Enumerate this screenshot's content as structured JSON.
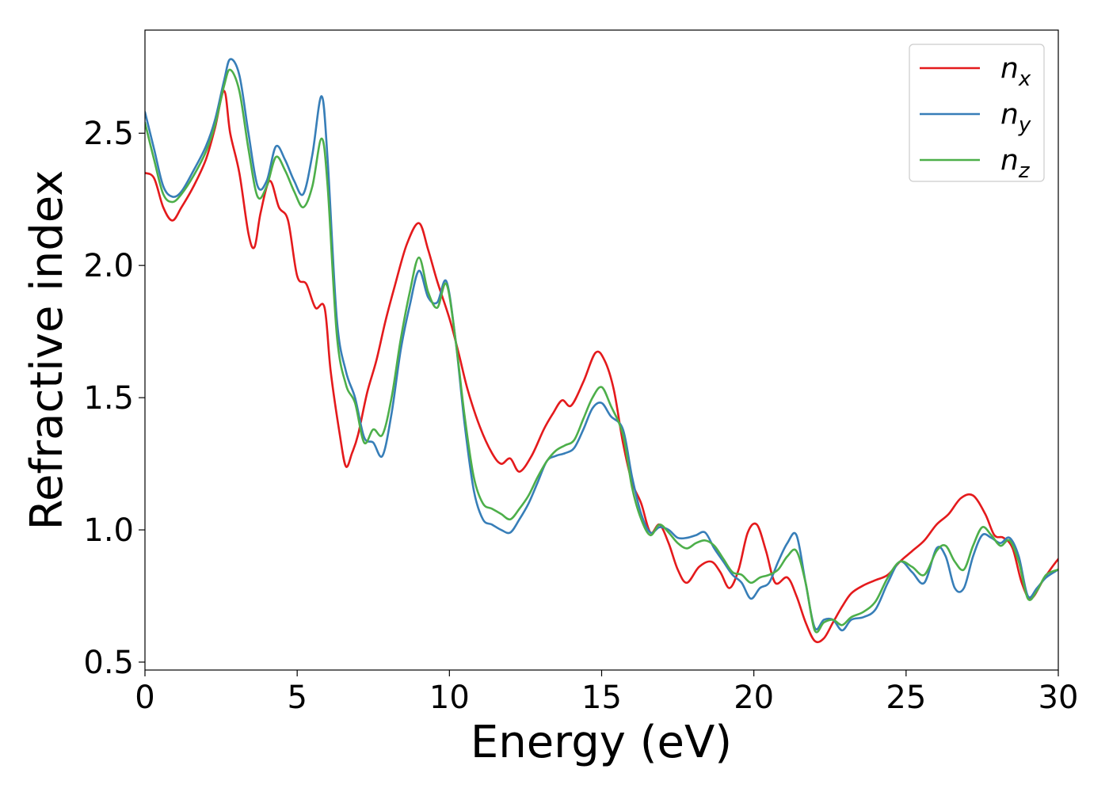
{
  "chart_data": {
    "type": "line",
    "title": "",
    "xlabel": "Energy (eV)",
    "ylabel": "Refractive index",
    "xlim": [
      0,
      30
    ],
    "ylim": [
      0.47,
      2.89
    ],
    "xticks": [
      0,
      5,
      10,
      15,
      20,
      25,
      30
    ],
    "yticks": [
      0.5,
      1.0,
      1.5,
      2.0,
      2.5
    ],
    "xtick_labels": [
      "0",
      "5",
      "10",
      "15",
      "20",
      "25",
      "30"
    ],
    "ytick_labels": [
      "0.5",
      "1.0",
      "1.5",
      "2.0",
      "2.5"
    ],
    "grid": false,
    "legend_position": "top-right",
    "series": [
      {
        "name": "x",
        "label_base": "n",
        "label_sub": "x",
        "color": "#e41a1c",
        "x": [
          0,
          0.3,
          0.6,
          0.9,
          1.2,
          1.6,
          2.0,
          2.3,
          2.6,
          2.8,
          3.1,
          3.4,
          3.6,
          3.8,
          4.1,
          4.4,
          4.7,
          5.0,
          5.3,
          5.6,
          5.9,
          6.1,
          6.4,
          6.6,
          6.8,
          7.0,
          7.3,
          7.6,
          7.9,
          8.2,
          8.6,
          9.0,
          9.3,
          9.6,
          10.0,
          10.3,
          10.6,
          11.0,
          11.4,
          11.7,
          12.0,
          12.3,
          12.7,
          13.1,
          13.4,
          13.7,
          14.0,
          14.4,
          14.8,
          15.1,
          15.4,
          15.7,
          16.0,
          16.3,
          16.6,
          16.9,
          17.2,
          17.5,
          17.8,
          18.2,
          18.6,
          18.9,
          19.2,
          19.5,
          19.8,
          20.1,
          20.4,
          20.7,
          21.1,
          21.4,
          21.7,
          22.0,
          22.3,
          22.6,
          22.9,
          23.2,
          23.6,
          24.0,
          24.4,
          24.8,
          25.2,
          25.6,
          26.0,
          26.4,
          26.8,
          27.2,
          27.6,
          27.9,
          28.2,
          28.5,
          28.8,
          29.1,
          29.5,
          29.8,
          30.0
        ],
        "y": [
          2.35,
          2.33,
          2.22,
          2.17,
          2.22,
          2.3,
          2.4,
          2.52,
          2.66,
          2.5,
          2.35,
          2.12,
          2.07,
          2.2,
          2.32,
          2.22,
          2.17,
          1.96,
          1.93,
          1.84,
          1.84,
          1.6,
          1.36,
          1.24,
          1.29,
          1.36,
          1.52,
          1.64,
          1.79,
          1.92,
          2.08,
          2.16,
          2.06,
          1.94,
          1.8,
          1.67,
          1.53,
          1.39,
          1.29,
          1.25,
          1.27,
          1.22,
          1.28,
          1.38,
          1.44,
          1.49,
          1.47,
          1.56,
          1.67,
          1.64,
          1.53,
          1.33,
          1.18,
          1.1,
          0.99,
          1.02,
          0.95,
          0.85,
          0.8,
          0.86,
          0.88,
          0.84,
          0.78,
          0.85,
          0.99,
          1.02,
          0.92,
          0.8,
          0.82,
          0.75,
          0.65,
          0.58,
          0.59,
          0.65,
          0.71,
          0.76,
          0.79,
          0.81,
          0.83,
          0.88,
          0.92,
          0.96,
          1.02,
          1.06,
          1.12,
          1.13,
          1.06,
          0.98,
          0.97,
          0.93,
          0.8,
          0.74,
          0.81,
          0.86,
          0.89
        ]
      },
      {
        "name": "y",
        "label_base": "n",
        "label_sub": "y",
        "color": "#377eb8",
        "x": [
          0,
          0.3,
          0.6,
          0.9,
          1.2,
          1.6,
          2.0,
          2.3,
          2.6,
          2.8,
          3.1,
          3.4,
          3.7,
          4.0,
          4.3,
          4.6,
          4.9,
          5.2,
          5.5,
          5.8,
          6.0,
          6.3,
          6.6,
          6.9,
          7.2,
          7.5,
          7.8,
          8.1,
          8.4,
          8.7,
          9.0,
          9.3,
          9.6,
          9.9,
          10.2,
          10.5,
          10.8,
          11.1,
          11.4,
          11.7,
          12.0,
          12.3,
          12.6,
          12.9,
          13.2,
          13.5,
          13.8,
          14.1,
          14.4,
          14.7,
          15.0,
          15.3,
          15.7,
          16.0,
          16.3,
          16.6,
          16.9,
          17.2,
          17.5,
          17.8,
          18.1,
          18.4,
          18.7,
          19.0,
          19.3,
          19.6,
          19.9,
          20.2,
          20.5,
          20.8,
          21.1,
          21.4,
          21.7,
          22.0,
          22.3,
          22.6,
          22.9,
          23.2,
          23.6,
          24.0,
          24.4,
          24.8,
          25.2,
          25.6,
          26.0,
          26.3,
          26.6,
          26.9,
          27.2,
          27.5,
          27.8,
          28.1,
          28.4,
          28.7,
          29.0,
          29.3,
          29.6,
          30.0
        ],
        "y": [
          2.58,
          2.44,
          2.3,
          2.26,
          2.28,
          2.36,
          2.45,
          2.55,
          2.7,
          2.78,
          2.72,
          2.5,
          2.3,
          2.32,
          2.45,
          2.4,
          2.32,
          2.27,
          2.42,
          2.64,
          2.4,
          1.8,
          1.6,
          1.5,
          1.35,
          1.33,
          1.28,
          1.44,
          1.68,
          1.85,
          1.98,
          1.88,
          1.86,
          1.94,
          1.72,
          1.4,
          1.15,
          1.04,
          1.02,
          1.0,
          0.99,
          1.04,
          1.1,
          1.18,
          1.26,
          1.28,
          1.29,
          1.31,
          1.38,
          1.46,
          1.48,
          1.43,
          1.38,
          1.2,
          1.06,
          0.99,
          1.01,
          1.0,
          0.97,
          0.97,
          0.98,
          0.99,
          0.93,
          0.88,
          0.83,
          0.8,
          0.74,
          0.78,
          0.8,
          0.88,
          0.95,
          0.98,
          0.8,
          0.63,
          0.66,
          0.66,
          0.62,
          0.66,
          0.67,
          0.7,
          0.8,
          0.88,
          0.84,
          0.8,
          0.93,
          0.9,
          0.78,
          0.78,
          0.9,
          0.98,
          0.97,
          0.95,
          0.97,
          0.9,
          0.75,
          0.78,
          0.82,
          0.85
        ]
      },
      {
        "name": "z",
        "label_base": "n",
        "label_sub": "z",
        "color": "#4daf4a",
        "x": [
          0,
          0.3,
          0.6,
          0.9,
          1.2,
          1.6,
          2.0,
          2.3,
          2.6,
          2.8,
          3.1,
          3.4,
          3.7,
          4.0,
          4.3,
          4.6,
          4.9,
          5.2,
          5.5,
          5.8,
          6.0,
          6.3,
          6.6,
          6.9,
          7.2,
          7.5,
          7.8,
          8.1,
          8.4,
          8.7,
          9.0,
          9.3,
          9.6,
          9.9,
          10.2,
          10.5,
          10.8,
          11.1,
          11.4,
          11.7,
          12.0,
          12.3,
          12.6,
          12.9,
          13.2,
          13.5,
          13.8,
          14.1,
          14.4,
          14.7,
          15.0,
          15.3,
          15.7,
          16.0,
          16.3,
          16.6,
          16.9,
          17.2,
          17.5,
          17.8,
          18.1,
          18.4,
          18.7,
          19.0,
          19.3,
          19.6,
          19.9,
          20.2,
          20.5,
          20.8,
          21.1,
          21.4,
          21.7,
          22.0,
          22.3,
          22.6,
          22.9,
          23.2,
          23.6,
          24.0,
          24.4,
          24.8,
          25.2,
          25.6,
          26.0,
          26.3,
          26.6,
          26.9,
          27.2,
          27.5,
          27.8,
          28.1,
          28.4,
          28.7,
          29.0,
          29.3,
          29.6,
          30.0
        ],
        "y": [
          2.54,
          2.4,
          2.27,
          2.24,
          2.27,
          2.34,
          2.43,
          2.53,
          2.68,
          2.74,
          2.66,
          2.44,
          2.26,
          2.3,
          2.41,
          2.36,
          2.28,
          2.22,
          2.3,
          2.48,
          2.3,
          1.74,
          1.55,
          1.48,
          1.33,
          1.38,
          1.36,
          1.5,
          1.72,
          1.9,
          2.03,
          1.9,
          1.84,
          1.93,
          1.72,
          1.43,
          1.2,
          1.1,
          1.08,
          1.06,
          1.04,
          1.08,
          1.13,
          1.2,
          1.26,
          1.3,
          1.32,
          1.34,
          1.42,
          1.5,
          1.54,
          1.47,
          1.36,
          1.16,
          1.04,
          0.98,
          1.02,
          0.99,
          0.95,
          0.93,
          0.95,
          0.96,
          0.94,
          0.89,
          0.84,
          0.83,
          0.8,
          0.82,
          0.83,
          0.85,
          0.9,
          0.92,
          0.8,
          0.62,
          0.65,
          0.66,
          0.64,
          0.67,
          0.69,
          0.73,
          0.82,
          0.88,
          0.86,
          0.83,
          0.92,
          0.94,
          0.88,
          0.85,
          0.94,
          1.01,
          0.98,
          0.94,
          0.96,
          0.88,
          0.74,
          0.77,
          0.83,
          0.85
        ]
      }
    ]
  }
}
